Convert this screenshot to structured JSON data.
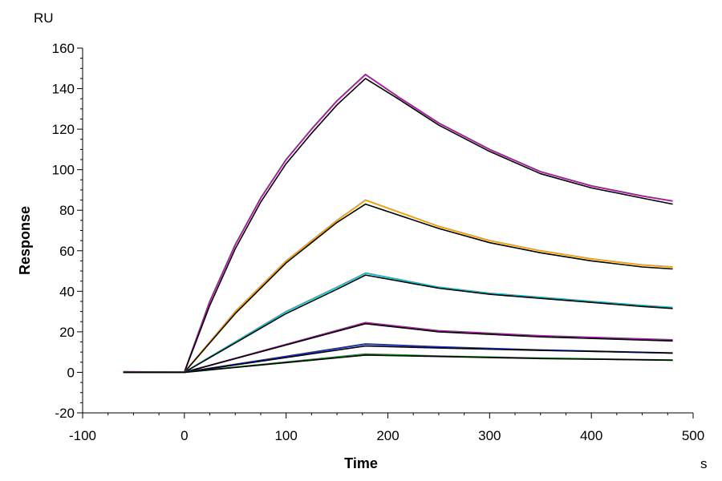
{
  "chart_data": {
    "type": "line",
    "title": "",
    "xlabel": "Time",
    "ylabel": "Response",
    "x_unit": "s",
    "y_unit": "RU",
    "xlim": [
      -100,
      500
    ],
    "ylim": [
      -20,
      160
    ],
    "x_ticks": [
      -100,
      0,
      100,
      200,
      300,
      400,
      500
    ],
    "y_ticks": [
      -20,
      0,
      20,
      40,
      60,
      80,
      100,
      120,
      140,
      160
    ],
    "grid": false,
    "legend": "none",
    "series": [
      {
        "color": "#a0259a",
        "x": [
          -60,
          0,
          25,
          50,
          75,
          100,
          125,
          150,
          178,
          210,
          250,
          300,
          350,
          400,
          450,
          480
        ],
        "values": [
          0.3,
          0,
          35,
          63,
          86,
          105,
          120,
          134,
          147,
          136,
          123,
          110,
          99,
          92,
          87,
          84.5
        ]
      },
      {
        "color": "#000000",
        "x": [
          -60,
          0,
          25,
          50,
          75,
          100,
          125,
          150,
          178,
          210,
          250,
          300,
          350,
          400,
          450,
          480
        ],
        "values": [
          0,
          0,
          33,
          61,
          84,
          103,
          118,
          132,
          145,
          135,
          122,
          109,
          98,
          91,
          86,
          83
        ]
      },
      {
        "color": "#e8a316",
        "x": [
          -60,
          0,
          50,
          100,
          150,
          178,
          250,
          300,
          350,
          400,
          450,
          480
        ],
        "values": [
          0,
          0,
          30,
          55,
          75,
          85,
          72,
          65,
          60,
          56,
          53,
          52
        ]
      },
      {
        "color": "#000000",
        "x": [
          -60,
          0,
          50,
          100,
          150,
          178,
          250,
          300,
          350,
          400,
          450,
          480
        ],
        "values": [
          0,
          0,
          29,
          54,
          74,
          83,
          71,
          64,
          59,
          55,
          52,
          51
        ]
      },
      {
        "color": "#21b6c4",
        "x": [
          -60,
          0,
          50,
          100,
          150,
          178,
          250,
          300,
          350,
          400,
          450,
          480
        ],
        "values": [
          0,
          0,
          15,
          30,
          42,
          49,
          42,
          39,
          37,
          35,
          33,
          32
        ]
      },
      {
        "color": "#000000",
        "x": [
          -60,
          0,
          50,
          100,
          150,
          178,
          250,
          300,
          350,
          400,
          450,
          480
        ],
        "values": [
          0,
          0,
          14.5,
          29,
          41,
          48,
          41.5,
          38.5,
          36.5,
          34.5,
          32.5,
          31.5
        ]
      },
      {
        "color": "#9b2c9b",
        "x": [
          -60,
          0,
          178,
          250,
          350,
          480
        ],
        "values": [
          0,
          0,
          24.5,
          20.5,
          18,
          16
        ]
      },
      {
        "color": "#000000",
        "x": [
          -60,
          0,
          178,
          250,
          350,
          480
        ],
        "values": [
          0,
          0,
          24,
          20,
          17.5,
          15.5
        ]
      },
      {
        "color": "#1f2fa8",
        "x": [
          -60,
          0,
          178,
          250,
          350,
          480
        ],
        "values": [
          0,
          0,
          14,
          12.5,
          11,
          9.5
        ]
      },
      {
        "color": "#000000",
        "x": [
          -60,
          0,
          178,
          250,
          350,
          480
        ],
        "values": [
          0,
          0,
          13,
          12,
          10.8,
          9.5
        ]
      },
      {
        "color": "#1e8a2e",
        "x": [
          -60,
          0,
          178,
          250,
          350,
          480
        ],
        "values": [
          0,
          0,
          9,
          8,
          7,
          6
        ]
      },
      {
        "color": "#000000",
        "x": [
          -60,
          0,
          178,
          250,
          350,
          480
        ],
        "values": [
          0,
          0,
          8.5,
          7.8,
          6.8,
          6
        ]
      }
    ]
  }
}
